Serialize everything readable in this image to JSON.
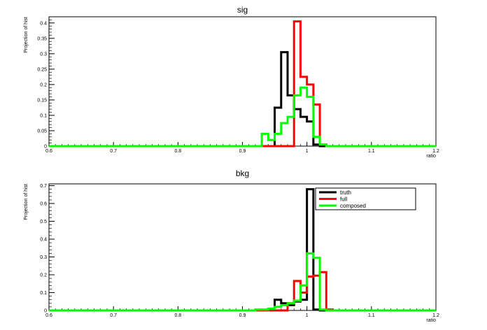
{
  "chart_data": [
    {
      "type": "histogram",
      "title": "sig",
      "xlabel": "ratio",
      "ylabel": "Projection of hist",
      "xlim": [
        0.6,
        1.2
      ],
      "ylim": [
        0,
        0.42
      ],
      "xticks": [
        "0.6",
        "0.7",
        "0.8",
        "0.9",
        "1",
        "1.1",
        "1.2"
      ],
      "yticks": [
        "0",
        "0.05",
        "0.1",
        "0.15",
        "0.2",
        "0.25",
        "0.3",
        "0.35",
        "0.4"
      ],
      "bin_width": 0.01,
      "series": [
        {
          "name": "truth",
          "color": "#000000",
          "bins": [
            [
              0.95,
              0.125
            ],
            [
              0.96,
              0.305
            ],
            [
              0.97,
              0.165
            ],
            [
              0.98,
              0.12
            ],
            [
              0.99,
              0.095
            ],
            [
              1.0,
              0.08
            ],
            [
              1.01,
              0.005
            ]
          ]
        },
        {
          "name": "full",
          "color": "#ff0000",
          "bins": [
            [
              0.98,
              0.405
            ],
            [
              0.99,
              0.225
            ],
            [
              1.0,
              0.2
            ],
            [
              1.01,
              0.135
            ],
            [
              1.02,
              0.005
            ]
          ]
        },
        {
          "name": "composed",
          "color": "#00ff00",
          "bins": [
            [
              0.93,
              0.04
            ],
            [
              0.94,
              0.02
            ],
            [
              0.95,
              0.04
            ],
            [
              0.96,
              0.075
            ],
            [
              0.97,
              0.095
            ],
            [
              0.98,
              0.165
            ],
            [
              0.99,
              0.19
            ],
            [
              1.0,
              0.16
            ],
            [
              1.01,
              0.03
            ],
            [
              1.02,
              0.005
            ]
          ]
        }
      ]
    },
    {
      "type": "histogram",
      "title": "bkg",
      "xlabel": "ratio",
      "ylabel": "Projection of hist",
      "xlim": [
        0.6,
        1.2
      ],
      "ylim": [
        0,
        0.71
      ],
      "xticks": [
        "0.6",
        "0.7",
        "0.8",
        "0.9",
        "1",
        "1.1",
        "1.2"
      ],
      "yticks": [
        "0",
        "0.1",
        "0.2",
        "0.3",
        "0.4",
        "0.5",
        "0.6",
        "0.7"
      ],
      "bin_width": 0.01,
      "legend": {
        "placement": "top-right",
        "entries": [
          "truth",
          "full",
          "composed"
        ]
      },
      "series": [
        {
          "name": "truth",
          "color": "#000000",
          "bins": [
            [
              0.94,
              0.01
            ],
            [
              0.95,
              0.06
            ],
            [
              0.96,
              0.04
            ],
            [
              0.97,
              0.03
            ],
            [
              0.98,
              0.05
            ],
            [
              0.99,
              0.06
            ],
            [
              1.0,
              0.68
            ],
            [
              1.01,
              0.005
            ]
          ]
        },
        {
          "name": "full",
          "color": "#ff0000",
          "bins": [
            [
              0.97,
              0.04
            ],
            [
              0.98,
              0.165
            ],
            [
              0.99,
              0.1
            ],
            [
              1.0,
              0.19
            ],
            [
              1.01,
              0.195
            ],
            [
              1.02,
              0.215
            ],
            [
              1.03,
              0.005
            ]
          ]
        },
        {
          "name": "composed",
          "color": "#00ff00",
          "bins": [
            [
              0.92,
              0.005
            ],
            [
              0.93,
              0.005
            ],
            [
              0.94,
              0.01
            ],
            [
              0.95,
              0.02
            ],
            [
              0.96,
              0.03
            ],
            [
              0.97,
              0.04
            ],
            [
              0.98,
              0.055
            ],
            [
              0.99,
              0.14
            ],
            [
              1.0,
              0.32
            ],
            [
              1.01,
              0.295
            ],
            [
              1.02,
              0.005
            ]
          ]
        }
      ]
    }
  ]
}
